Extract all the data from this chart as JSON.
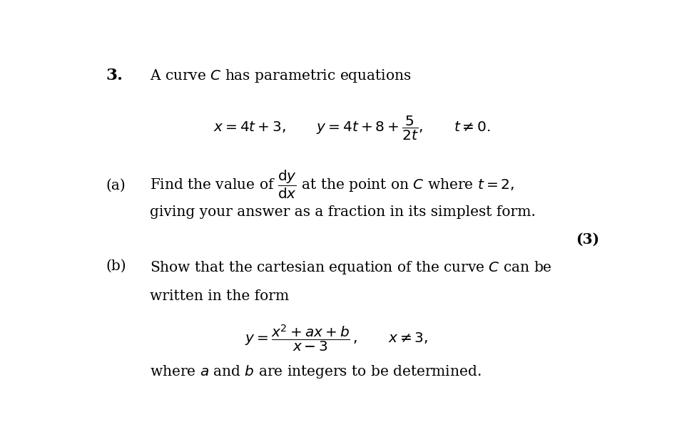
{
  "background_color": "#ffffff",
  "fig_width": 9.63,
  "fig_height": 6.13,
  "dpi": 100,
  "question_number": "3.",
  "title_text": "A curve $C$ has parametric equations",
  "part_a_label": "(a)",
  "part_a_line2": "giving your answer as a fraction in its simplest form.",
  "marks_a": "(3)",
  "part_b_label": "(b)",
  "part_b_line1": "Show that the cartesian equation of the curve $C$ can be",
  "part_b_line2": "written in the form",
  "part_b_line3": "where $a$ and $b$ are integers to be determined.",
  "font_size_main": 14.5,
  "font_size_number": 15.5
}
